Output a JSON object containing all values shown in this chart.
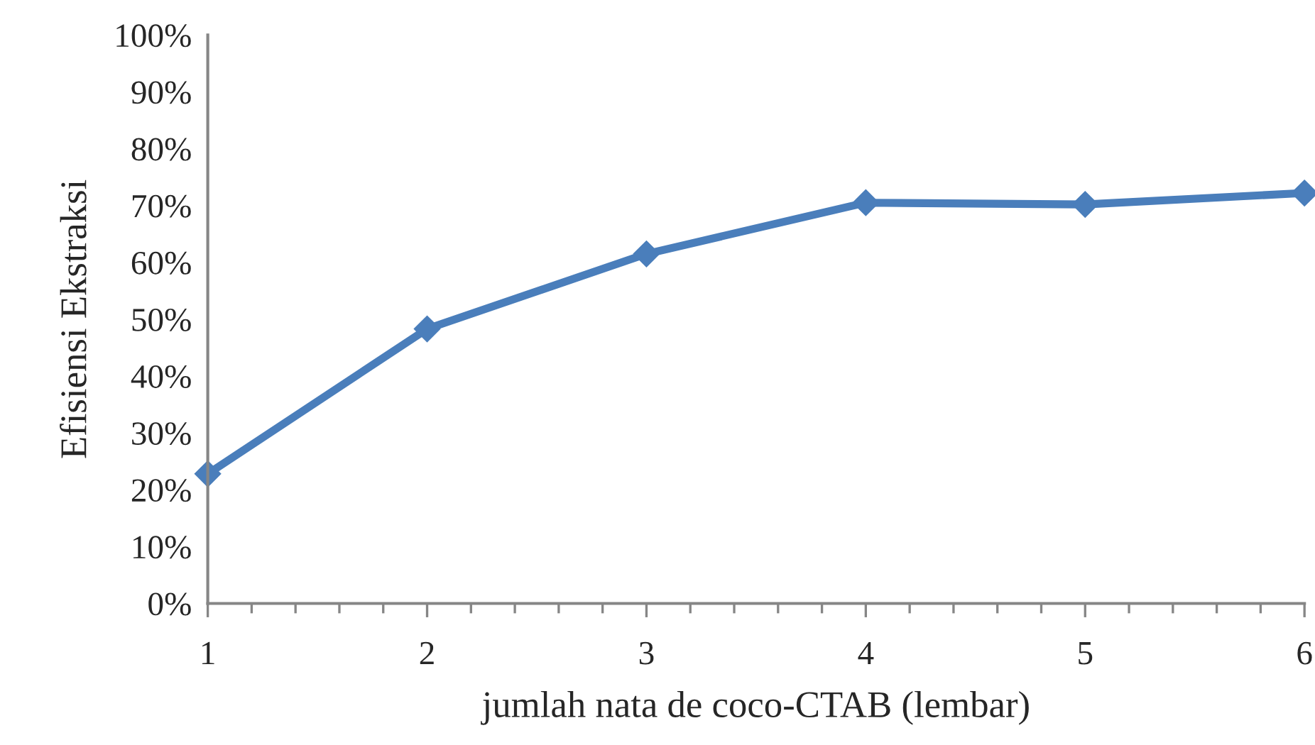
{
  "chart_data": {
    "type": "line",
    "xlabel": "jumlah nata de coco-CTAB (lembar)",
    "ylabel": "Efisiensi Ekstraksi",
    "x": [
      1,
      2,
      3,
      4,
      5,
      6
    ],
    "series": [
      {
        "color": "#4a7ebb",
        "values": [
          22.8,
          48.3,
          61.5,
          70.5,
          70.2,
          72.2
        ]
      }
    ],
    "xlim": [
      1,
      6
    ],
    "xticks": [
      1,
      2,
      3,
      4,
      5,
      6
    ],
    "ylim": [
      0,
      100
    ],
    "yticks": [
      {
        "value": 0,
        "label": "0%"
      },
      {
        "value": 10,
        "label": "10%"
      },
      {
        "value": 20,
        "label": "20%"
      },
      {
        "value": 30,
        "label": "30%"
      },
      {
        "value": 40,
        "label": "40%"
      },
      {
        "value": 50,
        "label": "50%"
      },
      {
        "value": 60,
        "label": "60%"
      },
      {
        "value": 70,
        "label": "70%"
      },
      {
        "value": 80,
        "label": "80%"
      },
      {
        "value": 90,
        "label": "90%"
      },
      {
        "value": 100,
        "label": "100%"
      }
    ],
    "marker": "diamond",
    "line_style": "solid",
    "grid": false
  }
}
